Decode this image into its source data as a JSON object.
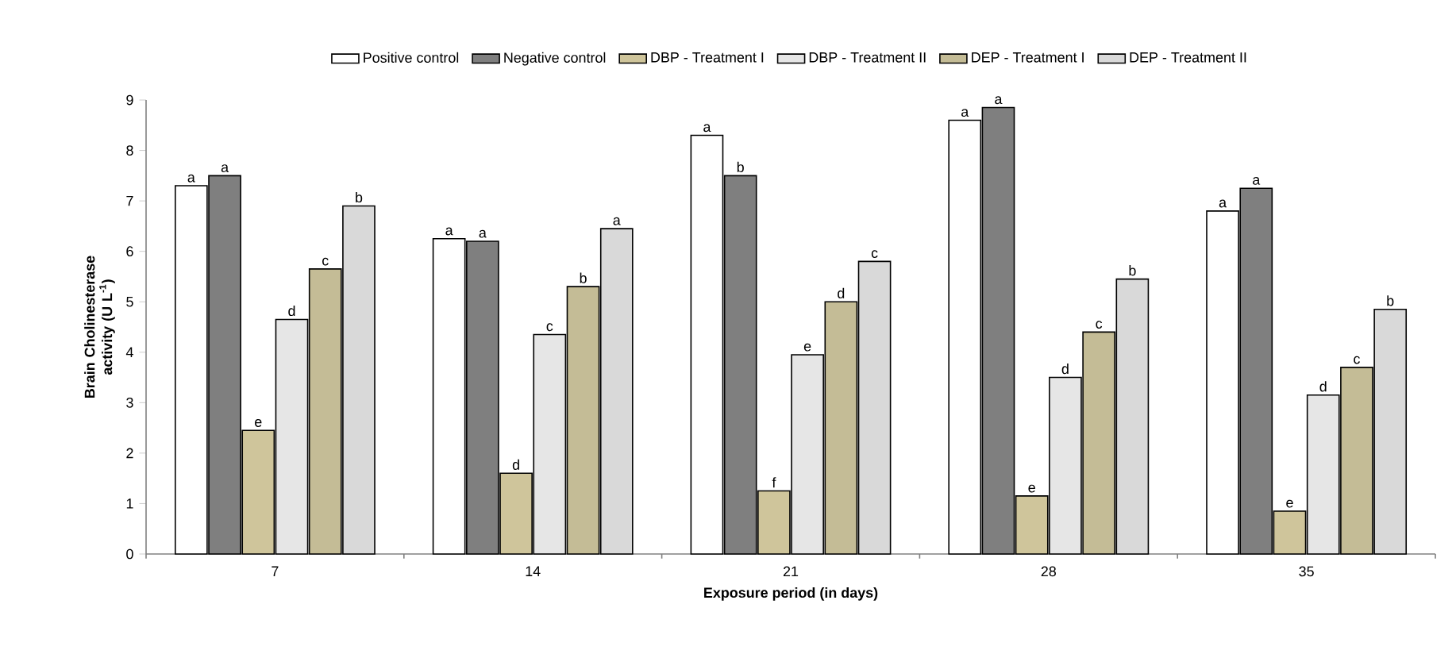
{
  "chart_data": {
    "type": "bar",
    "xlabel": "Exposure period (in days)",
    "ylabel": "Brain Cholinesterase activity (U L$^{-1}$)",
    "categories": [
      "7",
      "14",
      "21",
      "28",
      "35"
    ],
    "series": [
      {
        "name": "Positive control",
        "color": "#ffffff",
        "values": [
          7.3,
          6.25,
          8.3,
          8.6,
          6.8
        ],
        "value_labels": [
          "a",
          "a",
          "a",
          "a",
          "a"
        ]
      },
      {
        "name": "Negative control",
        "color": "#7f7f7f",
        "values": [
          7.5,
          6.2,
          7.5,
          8.85,
          7.25
        ],
        "value_labels": [
          "a",
          "a",
          "b",
          "a",
          "a"
        ]
      },
      {
        "name": "DBP - Treatment I",
        "color": "#cfc59b",
        "values": [
          2.45,
          1.6,
          1.25,
          1.15,
          0.85
        ],
        "value_labels": [
          "e",
          "d",
          "f",
          "e",
          "e"
        ]
      },
      {
        "name": "DBP - Treatment II",
        "color": "#e6e6e6",
        "values": [
          4.65,
          4.35,
          3.95,
          3.5,
          3.15
        ],
        "value_labels": [
          "d",
          "c",
          "e",
          "d",
          "d"
        ]
      },
      {
        "name": "DEP - Treatment I",
        "color": "#c4bc96",
        "values": [
          5.65,
          5.3,
          5.0,
          4.4,
          3.7
        ],
        "value_labels": [
          "c",
          "b",
          "d",
          "c",
          "c"
        ]
      },
      {
        "name": "DEP - Treatment II",
        "color": "#d9d9d9",
        "values": [
          6.9,
          6.45,
          5.8,
          5.45,
          4.85
        ],
        "value_labels": [
          "b",
          "a",
          "c",
          "b",
          "b"
        ]
      }
    ],
    "ylim": [
      0,
      9
    ],
    "yticks": [
      0,
      1,
      2,
      3,
      4,
      5,
      6,
      7,
      8,
      9
    ],
    "grid": false,
    "legend": "top"
  }
}
